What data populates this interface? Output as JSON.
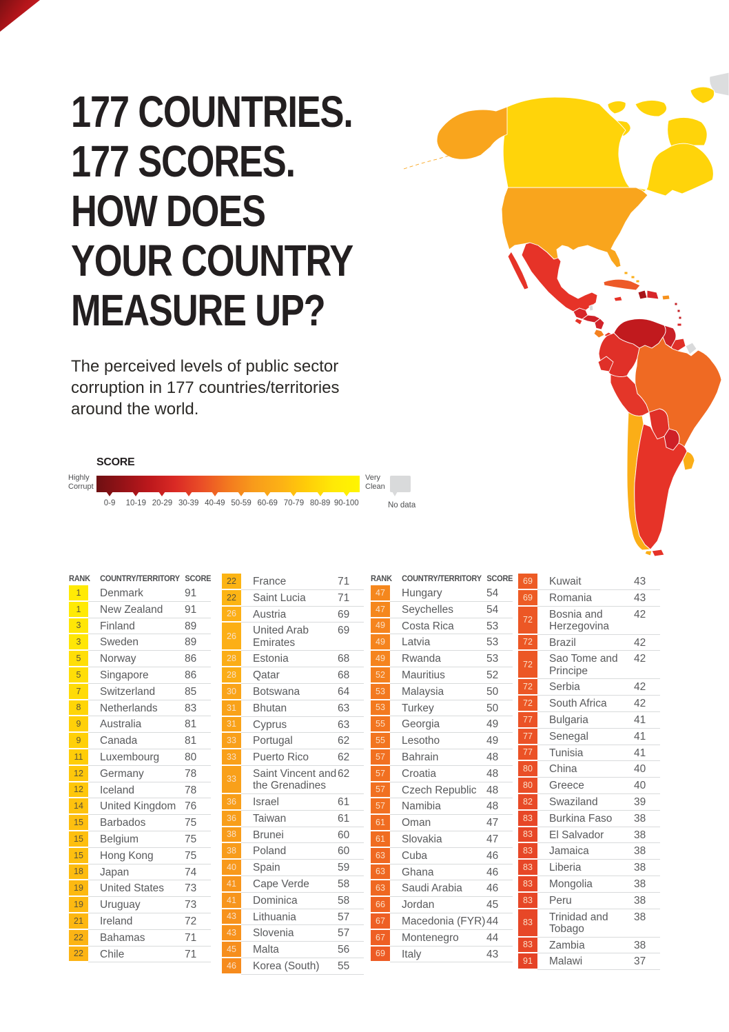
{
  "header": {
    "title_lines": [
      "177 COUNTRIES.",
      "177 SCORES.",
      "HOW DOES",
      "YOUR COUNTRY",
      "MEASURE UP?"
    ],
    "subtitle": "The perceived levels of public sector corruption in 177 countries/territories around the world."
  },
  "legend": {
    "title": "SCORE",
    "left_label": "Highly Corrupt",
    "right_label": "Very Clean",
    "no_data_label": "No data",
    "bins": [
      "0-9",
      "10-19",
      "20-29",
      "30-39",
      "40-49",
      "50-59",
      "60-69",
      "70-79",
      "80-89",
      "90-100"
    ]
  },
  "colors": {
    "corner_red": "#C8202A",
    "ramp": [
      [
        0,
        "#6E1012"
      ],
      [
        10,
        "#951217"
      ],
      [
        20,
        "#BC181C"
      ],
      [
        30,
        "#DA2A25"
      ],
      [
        40,
        "#EA4E27"
      ],
      [
        50,
        "#F3791F"
      ],
      [
        60,
        "#F89C1B"
      ],
      [
        70,
        "#FCB115"
      ],
      [
        80,
        "#FFCD08"
      ],
      [
        90,
        "#FFE906"
      ],
      [
        100,
        "#FFF500"
      ]
    ],
    "no_data": "#D9DADB",
    "badge_text_dark": "#5A5238",
    "badge_text_light": "#F9E0C8"
  },
  "table": {
    "headers": {
      "rank": "RANK",
      "country": "COUNTRY/TERRITORY",
      "score": "SCORE"
    },
    "columns": [
      {
        "has_header": true,
        "rows": [
          {
            "rank": "1",
            "country": "Denmark",
            "score": 91
          },
          {
            "rank": "1",
            "country": "New Zealand",
            "score": 91
          },
          {
            "rank": "3",
            "country": "Finland",
            "score": 89
          },
          {
            "rank": "3",
            "country": "Sweden",
            "score": 89
          },
          {
            "rank": "5",
            "country": "Norway",
            "score": 86
          },
          {
            "rank": "5",
            "country": "Singapore",
            "score": 86
          },
          {
            "rank": "7",
            "country": "Switzerland",
            "score": 85
          },
          {
            "rank": "8",
            "country": "Netherlands",
            "score": 83
          },
          {
            "rank": "9",
            "country": "Australia",
            "score": 81
          },
          {
            "rank": "9",
            "country": "Canada",
            "score": 81
          },
          {
            "rank": "11",
            "country": "Luxembourg",
            "score": 80
          },
          {
            "rank": "12",
            "country": "Germany",
            "score": 78
          },
          {
            "rank": "12",
            "country": "Iceland",
            "score": 78
          },
          {
            "rank": "14",
            "country": "United Kingdom",
            "score": 76
          },
          {
            "rank": "15",
            "country": "Barbados",
            "score": 75
          },
          {
            "rank": "15",
            "country": "Belgium",
            "score": 75
          },
          {
            "rank": "15",
            "country": "Hong Kong",
            "score": 75
          },
          {
            "rank": "18",
            "country": "Japan",
            "score": 74
          },
          {
            "rank": "19",
            "country": "United States",
            "score": 73
          },
          {
            "rank": "19",
            "country": "Uruguay",
            "score": 73
          },
          {
            "rank": "21",
            "country": "Ireland",
            "score": 72
          },
          {
            "rank": "22",
            "country": "Bahamas",
            "score": 71
          },
          {
            "rank": "22",
            "country": "Chile",
            "score": 71
          }
        ]
      },
      {
        "has_header": false,
        "rows": [
          {
            "rank": "22",
            "country": "France",
            "score": 71
          },
          {
            "rank": "22",
            "country": "Saint Lucia",
            "score": 71
          },
          {
            "rank": "26",
            "country": "Austria",
            "score": 69
          },
          {
            "rank": "26",
            "country": "United Arab Emirates",
            "score": 69
          },
          {
            "rank": "28",
            "country": "Estonia",
            "score": 68
          },
          {
            "rank": "28",
            "country": "Qatar",
            "score": 68
          },
          {
            "rank": "30",
            "country": "Botswana",
            "score": 64
          },
          {
            "rank": "31",
            "country": "Bhutan",
            "score": 63
          },
          {
            "rank": "31",
            "country": "Cyprus",
            "score": 63
          },
          {
            "rank": "33",
            "country": "Portugal",
            "score": 62
          },
          {
            "rank": "33",
            "country": "Puerto Rico",
            "score": 62
          },
          {
            "rank": "33",
            "country": "Saint Vincent and the Grenadines",
            "score": 62
          },
          {
            "rank": "36",
            "country": "Israel",
            "score": 61
          },
          {
            "rank": "36",
            "country": "Taiwan",
            "score": 61
          },
          {
            "rank": "38",
            "country": "Brunei",
            "score": 60
          },
          {
            "rank": "38",
            "country": "Poland",
            "score": 60
          },
          {
            "rank": "40",
            "country": "Spain",
            "score": 59
          },
          {
            "rank": "41",
            "country": "Cape Verde",
            "score": 58
          },
          {
            "rank": "41",
            "country": "Dominica",
            "score": 58
          },
          {
            "rank": "43",
            "country": "Lithuania",
            "score": 57
          },
          {
            "rank": "43",
            "country": "Slovenia",
            "score": 57
          },
          {
            "rank": "45",
            "country": "Malta",
            "score": 56
          },
          {
            "rank": "46",
            "country": "Korea (South)",
            "score": 55
          }
        ]
      },
      {
        "has_header": true,
        "rows": [
          {
            "rank": "47",
            "country": "Hungary",
            "score": 54
          },
          {
            "rank": "47",
            "country": "Seychelles",
            "score": 54
          },
          {
            "rank": "49",
            "country": "Costa Rica",
            "score": 53
          },
          {
            "rank": "49",
            "country": "Latvia",
            "score": 53
          },
          {
            "rank": "49",
            "country": "Rwanda",
            "score": 53
          },
          {
            "rank": "52",
            "country": "Mauritius",
            "score": 52
          },
          {
            "rank": "53",
            "country": "Malaysia",
            "score": 50
          },
          {
            "rank": "53",
            "country": "Turkey",
            "score": 50
          },
          {
            "rank": "55",
            "country": "Georgia",
            "score": 49
          },
          {
            "rank": "55",
            "country": "Lesotho",
            "score": 49
          },
          {
            "rank": "57",
            "country": "Bahrain",
            "score": 48
          },
          {
            "rank": "57",
            "country": "Croatia",
            "score": 48
          },
          {
            "rank": "57",
            "country": "Czech Republic",
            "score": 48
          },
          {
            "rank": "57",
            "country": "Namibia",
            "score": 48
          },
          {
            "rank": "61",
            "country": "Oman",
            "score": 47
          },
          {
            "rank": "61",
            "country": "Slovakia",
            "score": 47
          },
          {
            "rank": "63",
            "country": "Cuba",
            "score": 46
          },
          {
            "rank": "63",
            "country": "Ghana",
            "score": 46
          },
          {
            "rank": "63",
            "country": "Saudi Arabia",
            "score": 46
          },
          {
            "rank": "66",
            "country": "Jordan",
            "score": 45
          },
          {
            "rank": "67",
            "country": "Macedonia (FYR)",
            "score": 44
          },
          {
            "rank": "67",
            "country": "Montenegro",
            "score": 44
          },
          {
            "rank": "69",
            "country": "Italy",
            "score": 43
          }
        ]
      },
      {
        "has_header": false,
        "rows": [
          {
            "rank": "69",
            "country": "Kuwait",
            "score": 43
          },
          {
            "rank": "69",
            "country": "Romania",
            "score": 43
          },
          {
            "rank": "72",
            "country": "Bosnia and Herzegovina",
            "score": 42
          },
          {
            "rank": "72",
            "country": "Brazil",
            "score": 42
          },
          {
            "rank": "72",
            "country": "Sao Tome and Principe",
            "score": 42
          },
          {
            "rank": "72",
            "country": "Serbia",
            "score": 42
          },
          {
            "rank": "72",
            "country": "South Africa",
            "score": 42
          },
          {
            "rank": "77",
            "country": "Bulgaria",
            "score": 41
          },
          {
            "rank": "77",
            "country": "Senegal",
            "score": 41
          },
          {
            "rank": "77",
            "country": "Tunisia",
            "score": 41
          },
          {
            "rank": "80",
            "country": "China",
            "score": 40
          },
          {
            "rank": "80",
            "country": "Greece",
            "score": 40
          },
          {
            "rank": "82",
            "country": "Swaziland",
            "score": 39
          },
          {
            "rank": "83",
            "country": "Burkina Faso",
            "score": 38
          },
          {
            "rank": "83",
            "country": "El Salvador",
            "score": 38
          },
          {
            "rank": "83",
            "country": "Jamaica",
            "score": 38
          },
          {
            "rank": "83",
            "country": "Liberia",
            "score": 38
          },
          {
            "rank": "83",
            "country": "Mongolia",
            "score": 38
          },
          {
            "rank": "83",
            "country": "Peru",
            "score": 38
          },
          {
            "rank": "83",
            "country": "Trinidad and Tobago",
            "score": 38
          },
          {
            "rank": "83",
            "country": "Zambia",
            "score": 38
          },
          {
            "rank": "91",
            "country": "Malawi",
            "score": 37
          }
        ]
      }
    ]
  },
  "map": {
    "fills": {
      "greenland": "#DCDDDE",
      "canada": "#FFD40A",
      "arctic1": "#FFD40A",
      "arctic2": "#FFD40A",
      "arctic3": "#FFD40A",
      "arctic5": "#FFD40A",
      "arctic6": "#FFD40A",
      "alaska": "#F9A51D",
      "aleutians": "#F9A51D",
      "usa": "#F9A51D",
      "mexico": "#E63328",
      "baja": "#E63328",
      "guatemala": "#D8262A",
      "belize": "#D9DADB",
      "honduras": "#CE2027",
      "el-salvador": "#E63328",
      "nicaragua": "#D2232A",
      "costa-rica": "#F48120",
      "panama": "#E63328",
      "cuba": "#ED5A28",
      "jamaica": "#E63328",
      "haiti": "#A81419",
      "dominican-republic": "#D8262A",
      "puerto-rico": "#F6921E",
      "bahamas": "#FBAE17",
      "lesser-antilles": "#C32025",
      "trinidad": "#D8262A",
      "venezuela": "#C11A1E",
      "colombia": "#E03028",
      "ecuador": "#E03028",
      "guyana": "#C92027",
      "suriname": "#E03028",
      "french-guiana": "#D9DADB",
      "brazil": "#EF6A23",
      "peru": "#E43629",
      "bolivia": "#E03028",
      "paraguay": "#CE2027",
      "chile": "#FBAE17",
      "argentina": "#E63328",
      "uruguay": "#FBAE17",
      "tierra-del-fuego": "#E63328",
      "tierra-del-fuego-chile": "#FBAE17"
    }
  }
}
